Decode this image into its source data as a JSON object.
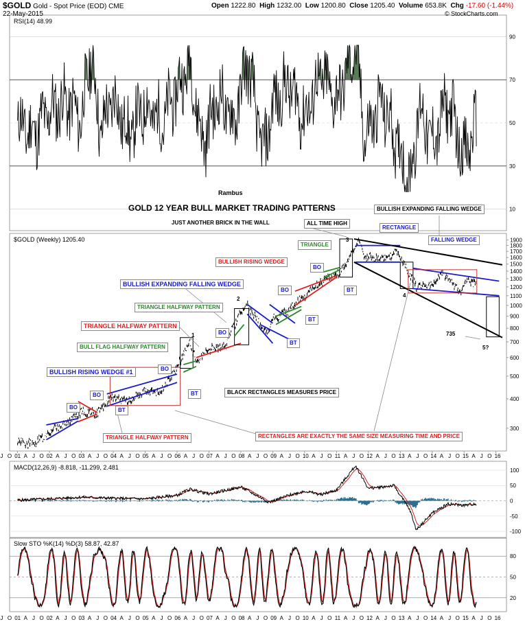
{
  "header": {
    "symbol": "$GOLD",
    "name": "Gold - Spot Price (EOD)",
    "exchange": "CME",
    "date": "22-May-2015",
    "open_label": "Open",
    "open": "1222.80",
    "high_label": "High",
    "high": "1232.00",
    "low_label": "Low",
    "low": "1200.80",
    "close_label": "Close",
    "close": "1205.40",
    "vol_label": "Volume",
    "volume": "653.8K",
    "chg_label": "Chg",
    "chg": "-17.60 (-1.44%)",
    "credit": "© StockCharts.com"
  },
  "panels": {
    "rsi_label": "RSI(14) 48.99",
    "price_label": "$GOLD (Weekly) 1205.40",
    "macd_label": "MACD(12,26,9) -8.818, -11.299, 2.481",
    "sto_label": "Slow STO %K(14) %D(3) 58.87, 42.87"
  },
  "colors": {
    "price": "#000000",
    "rsi_over": "#5a7a5a",
    "macd_main": "#000000",
    "macd_signal": "#cc2222",
    "histogram": "#2e6f8e",
    "pattern_red": "#e02020",
    "pattern_blue": "#1a1acc",
    "pattern_green": "#2a8a2a",
    "rect_red": "#c03030"
  },
  "annotations": {
    "author": "Rambus",
    "title": "GOLD 12 YEAR BULL MARKET TRADING PATTERNS",
    "subtitle": "JUST ANOTHER BRICK IN THE WALL",
    "all_time_high": "ALL TIME HIGH",
    "expanding_falling": "BULLISH EXPANDING FALLING WEDGE",
    "rectangle": "RECTANGLE",
    "falling_wedge": "FALLING WEDGE",
    "triangle": "TRIANGLE",
    "rising_wedge": "BULLISH RISING WEDGE",
    "bullish_exp_falling": "BULLISH EXPANDING FALLING WEDGE",
    "triangle_halfway": "TRIANGLE HALFWAY PATTERN",
    "triangle_halfway_red": "TRIANGLE HALFWAY PATTERN",
    "bull_flag": "BULL FLAG HALFWAY PATTERN",
    "rising_wedge_1": "BULLISH RISING WEDGE #1",
    "triangle_halfway_bottom": "TRIANGLE HALFWAY PATTERN",
    "black_rect": "BLACK RECTANGLES MEASURES PRICE",
    "rect_note": "RECTANGLES  ARE EXACTLY THE SAME SIZE MEASURING TIME AND PRICE",
    "bo": "BO",
    "bt": "BT",
    "n1": "1",
    "n2": "2",
    "n3": "3",
    "n4": "4",
    "n5": "5?",
    "n735": "735"
  },
  "chart_data": [
    {
      "type": "line",
      "name": "RSI(14)",
      "yticks": [
        10,
        30,
        50,
        70,
        90
      ],
      "ylim": [
        0,
        100
      ],
      "last": 48.99,
      "x": [
        2001.0,
        2001.5,
        2002.0,
        2002.5,
        2003.0,
        2003.3,
        2003.6,
        2004.0,
        2004.5,
        2005.0,
        2005.5,
        2006.0,
        2006.4,
        2006.8,
        2007.3,
        2007.8,
        2008.2,
        2008.7,
        2009.0,
        2009.5,
        2010.0,
        2010.5,
        2011.0,
        2011.6,
        2011.9,
        2012.4,
        2012.8,
        2013.3,
        2013.6,
        2014.0,
        2014.5,
        2015.0,
        2015.4
      ],
      "values": [
        50,
        45,
        55,
        60,
        52,
        82,
        46,
        62,
        44,
        58,
        50,
        65,
        78,
        40,
        62,
        50,
        80,
        35,
        58,
        68,
        52,
        72,
        60,
        86,
        42,
        60,
        45,
        22,
        58,
        40,
        60,
        34,
        49
      ]
    },
    {
      "type": "line",
      "name": "$GOLD (Weekly)",
      "yticks": [
        300,
        400,
        500,
        600,
        700,
        800,
        900,
        1000,
        1100,
        1200,
        1300,
        1400,
        1500,
        1600,
        1700,
        1800,
        1900
      ],
      "x": [
        2001.0,
        2001.5,
        2002.0,
        2002.5,
        2003.0,
        2003.5,
        2004.0,
        2004.4,
        2005.0,
        2005.5,
        2006.0,
        2006.4,
        2006.6,
        2007.0,
        2007.5,
        2008.0,
        2008.2,
        2008.8,
        2009.0,
        2009.5,
        2010.0,
        2010.5,
        2011.0,
        2011.3,
        2011.7,
        2011.9,
        2012.5,
        2012.9,
        2013.3,
        2013.5,
        2014.0,
        2014.3,
        2014.9,
        2015.1,
        2015.4
      ],
      "values": [
        265,
        255,
        290,
        315,
        350,
        350,
        410,
        390,
        430,
        430,
        540,
        700,
        580,
        650,
        670,
        930,
        1000,
        750,
        880,
        950,
        1100,
        1250,
        1350,
        1500,
        1900,
        1600,
        1600,
        1700,
        1350,
        1200,
        1220,
        1380,
        1140,
        1290,
        1205
      ],
      "ath": 1920
    },
    {
      "type": "line",
      "name": "MACD(12,26,9)",
      "yticks": [
        -100,
        -50,
        0,
        50,
        100
      ],
      "x": [
        2001.0,
        2002.0,
        2003.0,
        2004.0,
        2005.0,
        2006.0,
        2006.4,
        2007.0,
        2008.0,
        2008.9,
        2009.5,
        2010.0,
        2010.5,
        2011.0,
        2011.6,
        2012.0,
        2012.8,
        2013.3,
        2013.5,
        2014.0,
        2014.5,
        2015.0,
        2015.4
      ],
      "values": [
        2,
        6,
        12,
        8,
        6,
        18,
        38,
        22,
        45,
        -5,
        18,
        32,
        20,
        35,
        115,
        40,
        50,
        -30,
        -95,
        -40,
        -10,
        -15,
        -9
      ],
      "signal_last": -11.299,
      "hist_last": 2.481
    },
    {
      "type": "line",
      "name": "Slow STO %K(14) %D(3)",
      "yticks": [
        20,
        50,
        80
      ],
      "k_last": 58.87,
      "d_last": 42.87
    }
  ],
  "xaxis": {
    "ticks": [
      "J",
      "O",
      "01",
      "A",
      "J",
      "O",
      "02",
      "A",
      "J",
      "O",
      "03",
      "A",
      "J",
      "O",
      "04",
      "A",
      "J",
      "O",
      "05",
      "A",
      "J",
      "O",
      "06",
      "A",
      "J",
      "O",
      "07",
      "A",
      "J",
      "O",
      "08",
      "A",
      "J",
      "O",
      "09",
      "A",
      "J",
      "O",
      "10",
      "A",
      "J",
      "O",
      "11",
      "A",
      "J",
      "O",
      "12",
      "A",
      "J",
      "O",
      "13",
      "A",
      "J",
      "O",
      "14",
      "A",
      "J",
      "O",
      "15",
      "A",
      "J",
      "O",
      "16"
    ]
  }
}
